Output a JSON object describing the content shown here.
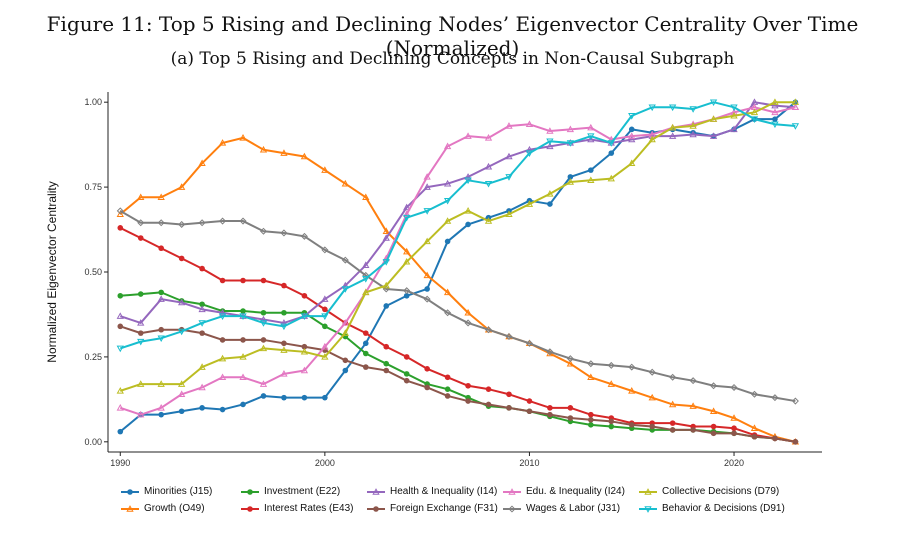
{
  "figure": {
    "title": "Figure 11: Top 5 Rising and Declining Nodes’ Eigenvector Centrality Over Time (Normalized)",
    "subtitle": "(a) Top 5 Rising and Declining Concepts in Non-Causal Subgraph"
  },
  "chart_data": {
    "type": "line",
    "title": "(a) Top 5 Rising and Declining Concepts in Non-Causal Subgraph",
    "xlabel": "",
    "ylabel": "Normalized Eigenvector Centrality",
    "xlim": [
      1989.4,
      2024.3
    ],
    "ylim": [
      -0.03,
      1.03
    ],
    "x_ticks": [
      1990,
      2000,
      2010,
      2020
    ],
    "y_ticks": [
      0.0,
      0.25,
      0.5,
      0.75,
      1.0
    ],
    "x_tick_labels": [
      "1990",
      "2000",
      "2010",
      "2020"
    ],
    "y_tick_labels": [
      "0.00",
      "0.25",
      "0.50",
      "0.75",
      "1.00"
    ],
    "grid": false,
    "legend_position": "bottom",
    "x": [
      1990,
      1991,
      1992,
      1993,
      1994,
      1995,
      1996,
      1997,
      1998,
      1999,
      2000,
      2001,
      2002,
      2003,
      2004,
      2005,
      2006,
      2007,
      2008,
      2009,
      2010,
      2011,
      2012,
      2013,
      2014,
      2015,
      2016,
      2017,
      2018,
      2019,
      2020,
      2021,
      2022,
      2023
    ],
    "series": [
      {
        "name": "Minorities (J15)",
        "color": "#1f77b4",
        "marker": "circle",
        "values": [
          0.03,
          0.08,
          0.08,
          0.09,
          0.1,
          0.095,
          0.11,
          0.135,
          0.13,
          0.13,
          0.13,
          0.21,
          0.29,
          0.4,
          0.43,
          0.45,
          0.59,
          0.64,
          0.66,
          0.68,
          0.71,
          0.7,
          0.78,
          0.8,
          0.85,
          0.92,
          0.91,
          0.92,
          0.91,
          0.9,
          0.92,
          0.95,
          0.95,
          1.0
        ]
      },
      {
        "name": "Growth (O49)",
        "color": "#ff7f0e",
        "marker": "triangle",
        "values": [
          0.67,
          0.72,
          0.72,
          0.75,
          0.82,
          0.88,
          0.895,
          0.86,
          0.85,
          0.84,
          0.8,
          0.76,
          0.72,
          0.62,
          0.56,
          0.49,
          0.44,
          0.38,
          0.33,
          0.31,
          0.29,
          0.26,
          0.23,
          0.19,
          0.17,
          0.15,
          0.13,
          0.11,
          0.105,
          0.09,
          0.07,
          0.04,
          0.015,
          0.0
        ]
      },
      {
        "name": "Investment (E22)",
        "color": "#2ca02c",
        "marker": "circle",
        "values": [
          0.43,
          0.435,
          0.44,
          0.415,
          0.405,
          0.385,
          0.385,
          0.38,
          0.38,
          0.38,
          0.34,
          0.31,
          0.26,
          0.23,
          0.2,
          0.17,
          0.155,
          0.13,
          0.105,
          0.1,
          0.09,
          0.075,
          0.06,
          0.05,
          0.045,
          0.04,
          0.035,
          0.035,
          0.035,
          0.03,
          0.025,
          0.015,
          0.01,
          0.0
        ]
      },
      {
        "name": "Interest Rates (E43)",
        "color": "#d62728",
        "marker": "circle",
        "values": [
          0.63,
          0.6,
          0.57,
          0.54,
          0.51,
          0.475,
          0.475,
          0.475,
          0.46,
          0.43,
          0.39,
          0.35,
          0.32,
          0.28,
          0.25,
          0.215,
          0.19,
          0.165,
          0.155,
          0.14,
          0.12,
          0.1,
          0.1,
          0.08,
          0.07,
          0.055,
          0.055,
          0.055,
          0.045,
          0.045,
          0.04,
          0.02,
          0.01,
          0.0
        ]
      },
      {
        "name": "Health & Inequality (I14)",
        "color": "#9467bd",
        "marker": "triangle",
        "values": [
          0.37,
          0.35,
          0.42,
          0.41,
          0.39,
          0.38,
          0.37,
          0.36,
          0.35,
          0.37,
          0.42,
          0.46,
          0.52,
          0.6,
          0.69,
          0.75,
          0.76,
          0.78,
          0.81,
          0.84,
          0.86,
          0.87,
          0.88,
          0.89,
          0.88,
          0.89,
          0.9,
          0.9,
          0.905,
          0.9,
          0.92,
          1.0,
          0.99,
          0.985
        ]
      },
      {
        "name": "Foreign Exchange (F31)",
        "color": "#8c564b",
        "marker": "circle",
        "values": [
          0.34,
          0.32,
          0.33,
          0.33,
          0.32,
          0.3,
          0.3,
          0.3,
          0.29,
          0.28,
          0.27,
          0.24,
          0.22,
          0.21,
          0.18,
          0.16,
          0.135,
          0.12,
          0.11,
          0.1,
          0.09,
          0.08,
          0.07,
          0.065,
          0.06,
          0.05,
          0.045,
          0.035,
          0.035,
          0.025,
          0.025,
          0.015,
          0.01,
          0.0
        ]
      },
      {
        "name": "Edu. & Inequality (I24)",
        "color": "#e377c2",
        "marker": "triangle",
        "values": [
          0.1,
          0.08,
          0.1,
          0.14,
          0.16,
          0.19,
          0.19,
          0.17,
          0.2,
          0.21,
          0.28,
          0.35,
          0.44,
          0.54,
          0.67,
          0.78,
          0.87,
          0.9,
          0.895,
          0.93,
          0.935,
          0.915,
          0.92,
          0.925,
          0.89,
          0.9,
          0.905,
          0.925,
          0.935,
          0.95,
          0.97,
          0.985,
          0.97,
          0.985
        ]
      },
      {
        "name": "Wages & Labor (J31)",
        "color": "#7f7f7f",
        "marker": "diamond",
        "values": [
          0.68,
          0.645,
          0.645,
          0.64,
          0.645,
          0.65,
          0.65,
          0.62,
          0.615,
          0.605,
          0.565,
          0.535,
          0.49,
          0.45,
          0.445,
          0.42,
          0.38,
          0.35,
          0.33,
          0.31,
          0.29,
          0.265,
          0.245,
          0.23,
          0.225,
          0.22,
          0.205,
          0.19,
          0.18,
          0.165,
          0.16,
          0.14,
          0.13,
          0.12
        ]
      },
      {
        "name": "Collective Decisions (D79)",
        "color": "#bcbd22",
        "marker": "triangle",
        "values": [
          0.15,
          0.17,
          0.17,
          0.17,
          0.22,
          0.245,
          0.25,
          0.275,
          0.27,
          0.265,
          0.25,
          0.32,
          0.44,
          0.46,
          0.53,
          0.59,
          0.65,
          0.68,
          0.65,
          0.67,
          0.7,
          0.73,
          0.765,
          0.77,
          0.775,
          0.82,
          0.89,
          0.925,
          0.93,
          0.95,
          0.96,
          0.97,
          1.0,
          1.0
        ]
      },
      {
        "name": "Behavior & Decisions (D91)",
        "color": "#17becf",
        "marker": "triangle-down",
        "values": [
          0.275,
          0.295,
          0.305,
          0.325,
          0.35,
          0.37,
          0.37,
          0.35,
          0.34,
          0.37,
          0.37,
          0.45,
          0.48,
          0.53,
          0.66,
          0.68,
          0.71,
          0.77,
          0.76,
          0.78,
          0.85,
          0.885,
          0.88,
          0.9,
          0.88,
          0.96,
          0.985,
          0.985,
          0.98,
          1.0,
          0.985,
          0.95,
          0.935,
          0.93
        ]
      }
    ]
  },
  "legend": {
    "rows": [
      [
        "Minorities (J15)",
        "Investment (E22)",
        "Health & Inequality (I14)",
        "Edu. & Inequality (I24)",
        "Collective Decisions (D79)"
      ],
      [
        "Growth (O49)",
        "Interest Rates (E43)",
        "Foreign Exchange (F31)",
        "Wages & Labor (J31)",
        "Behavior & Decisions (D91)"
      ]
    ]
  }
}
